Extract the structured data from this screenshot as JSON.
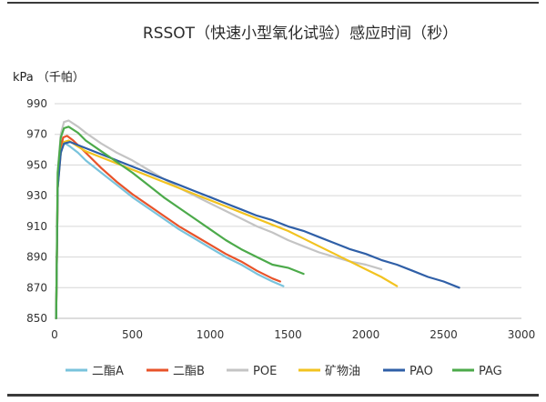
{
  "chart_data": {
    "type": "line",
    "title": "RSSOT（快速小型氧化试验）感应时间（秒）",
    "ylabel": "kPa （千帕）",
    "xlim": [
      0,
      3000
    ],
    "ylim": [
      850,
      990
    ],
    "x_ticks": [
      0,
      500,
      1000,
      1500,
      2000,
      2500,
      3000
    ],
    "y_ticks": [
      850,
      870,
      890,
      910,
      930,
      950,
      970,
      990
    ],
    "grid": "horizontal",
    "legend_position": "bottom",
    "series": [
      {
        "name": "二酯A",
        "color": "#79c3dc",
        "points": [
          [
            10,
            850
          ],
          [
            20,
            935
          ],
          [
            35,
            955
          ],
          [
            50,
            963
          ],
          [
            70,
            964
          ],
          [
            100,
            962
          ],
          [
            150,
            958
          ],
          [
            200,
            953
          ],
          [
            300,
            945
          ],
          [
            400,
            937
          ],
          [
            500,
            929
          ],
          [
            600,
            922
          ],
          [
            700,
            915
          ],
          [
            800,
            908
          ],
          [
            900,
            902
          ],
          [
            1000,
            896
          ],
          [
            1100,
            890
          ],
          [
            1200,
            885
          ],
          [
            1300,
            879
          ],
          [
            1400,
            874
          ],
          [
            1470,
            871
          ]
        ]
      },
      {
        "name": "二酯B",
        "color": "#e8532a",
        "points": [
          [
            10,
            850
          ],
          [
            20,
            935
          ],
          [
            35,
            958
          ],
          [
            55,
            968
          ],
          [
            80,
            969
          ],
          [
            120,
            966
          ],
          [
            200,
            958
          ],
          [
            300,
            948
          ],
          [
            400,
            939
          ],
          [
            500,
            931
          ],
          [
            600,
            924
          ],
          [
            700,
            917
          ],
          [
            800,
            910
          ],
          [
            900,
            904
          ],
          [
            1000,
            898
          ],
          [
            1100,
            892
          ],
          [
            1200,
            887
          ],
          [
            1300,
            881
          ],
          [
            1400,
            876
          ],
          [
            1450,
            874
          ]
        ]
      },
      {
        "name": "POE",
        "color": "#c4c4c4",
        "points": [
          [
            10,
            850
          ],
          [
            20,
            945
          ],
          [
            40,
            970
          ],
          [
            60,
            978
          ],
          [
            90,
            979
          ],
          [
            150,
            975
          ],
          [
            200,
            971
          ],
          [
            300,
            964
          ],
          [
            400,
            958
          ],
          [
            500,
            953
          ],
          [
            600,
            947
          ],
          [
            700,
            941
          ],
          [
            800,
            935
          ],
          [
            900,
            930
          ],
          [
            1000,
            925
          ],
          [
            1100,
            920
          ],
          [
            1200,
            915
          ],
          [
            1300,
            910
          ],
          [
            1400,
            906
          ],
          [
            1500,
            901
          ],
          [
            1600,
            897
          ],
          [
            1700,
            893
          ],
          [
            1800,
            890
          ],
          [
            1900,
            887
          ],
          [
            2000,
            885
          ],
          [
            2100,
            882
          ]
        ]
      },
      {
        "name": "矿物油",
        "color": "#f2c320",
        "points": [
          [
            10,
            850
          ],
          [
            20,
            935
          ],
          [
            40,
            958
          ],
          [
            60,
            965
          ],
          [
            90,
            966
          ],
          [
            150,
            962
          ],
          [
            200,
            959
          ],
          [
            300,
            955
          ],
          [
            400,
            951
          ],
          [
            500,
            947
          ],
          [
            600,
            943
          ],
          [
            700,
            939
          ],
          [
            800,
            935
          ],
          [
            900,
            931
          ],
          [
            1000,
            927
          ],
          [
            1100,
            923
          ],
          [
            1200,
            919
          ],
          [
            1300,
            915
          ],
          [
            1400,
            911
          ],
          [
            1500,
            907
          ],
          [
            1600,
            902
          ],
          [
            1700,
            897
          ],
          [
            1800,
            892
          ],
          [
            1900,
            887
          ],
          [
            2000,
            882
          ],
          [
            2100,
            877
          ],
          [
            2200,
            871
          ]
        ]
      },
      {
        "name": "PAO",
        "color": "#2f5fa7",
        "points": [
          [
            10,
            850
          ],
          [
            20,
            935
          ],
          [
            40,
            958
          ],
          [
            60,
            964
          ],
          [
            100,
            965
          ],
          [
            200,
            961
          ],
          [
            300,
            957
          ],
          [
            400,
            953
          ],
          [
            500,
            949
          ],
          [
            600,
            945
          ],
          [
            700,
            941
          ],
          [
            800,
            937
          ],
          [
            900,
            933
          ],
          [
            1000,
            929
          ],
          [
            1100,
            925
          ],
          [
            1200,
            921
          ],
          [
            1300,
            917
          ],
          [
            1400,
            914
          ],
          [
            1500,
            910
          ],
          [
            1600,
            907
          ],
          [
            1700,
            903
          ],
          [
            1800,
            899
          ],
          [
            1900,
            895
          ],
          [
            2000,
            892
          ],
          [
            2100,
            888
          ],
          [
            2200,
            885
          ],
          [
            2300,
            881
          ],
          [
            2400,
            877
          ],
          [
            2500,
            874
          ],
          [
            2600,
            870
          ]
        ]
      },
      {
        "name": "PAG",
        "color": "#4caa4a",
        "points": [
          [
            10,
            850
          ],
          [
            20,
            945
          ],
          [
            40,
            968
          ],
          [
            60,
            974
          ],
          [
            90,
            975
          ],
          [
            150,
            971
          ],
          [
            200,
            966
          ],
          [
            300,
            959
          ],
          [
            400,
            952
          ],
          [
            500,
            945
          ],
          [
            600,
            937
          ],
          [
            700,
            929
          ],
          [
            800,
            922
          ],
          [
            900,
            915
          ],
          [
            1000,
            908
          ],
          [
            1100,
            901
          ],
          [
            1200,
            895
          ],
          [
            1300,
            890
          ],
          [
            1400,
            885
          ],
          [
            1500,
            883
          ],
          [
            1600,
            879
          ]
        ]
      }
    ]
  }
}
